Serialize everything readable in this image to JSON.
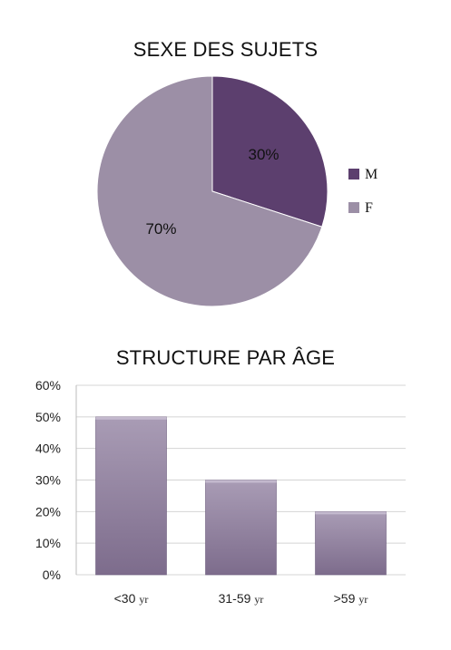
{
  "chart_data": [
    {
      "type": "pie",
      "title": "SEXE DES SUJETS",
      "slices": [
        {
          "label": "M",
          "value": 30,
          "display": "30%",
          "color": "#5c3f6e"
        },
        {
          "label": "F",
          "value": 70,
          "display": "70%",
          "color": "#9c8fa6"
        }
      ],
      "legend_position": "right"
    },
    {
      "type": "bar",
      "title": "STRUCTURE PAR ÂGE",
      "categories": [
        {
          "name": "<30",
          "unit": "yr"
        },
        {
          "name": "31-59",
          "unit": "yr"
        },
        {
          "name": ">59",
          "unit": "yr"
        }
      ],
      "values": [
        50,
        30,
        20
      ],
      "ylim": [
        0,
        60
      ],
      "yticks": [
        "0%",
        "10%",
        "20%",
        "30%",
        "40%",
        "50%",
        "60%"
      ],
      "grid": true,
      "bar_color": "#9a8aa8"
    }
  ]
}
